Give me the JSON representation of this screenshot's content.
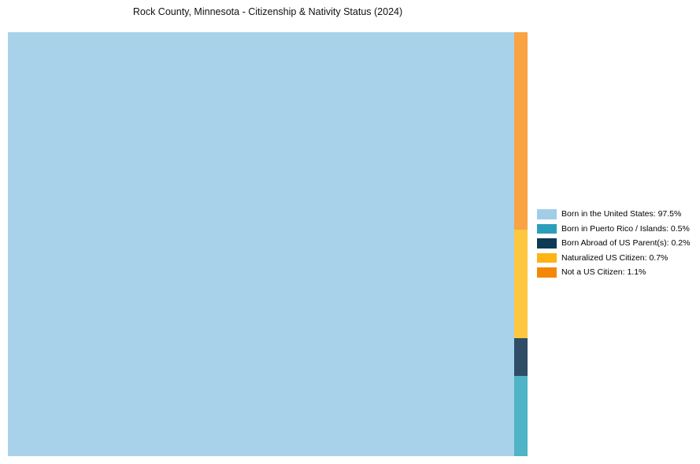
{
  "title": "Rock County, Minnesota - Citizenship & Nativity Status (2024)",
  "chart_data": {
    "type": "treemap",
    "title": "Rock County, Minnesota - Citizenship & Nativity Status (2024)",
    "categories": [
      "Born in the United States",
      "Born in Puerto Rico / Islands",
      "Born Abroad of US Parent(s)",
      "Naturalized US Citizen",
      "Not a US Citizen"
    ],
    "values": [
      97.5,
      0.5,
      0.2,
      0.7,
      1.1
    ],
    "unit": "%",
    "legend_position": "right",
    "segment_colors": [
      "#a7d2e9",
      "#4eb4c6",
      "#2f4d66",
      "#fdc83f",
      "#f9a342"
    ],
    "legend_swatch_colors": [
      "#a1cde7",
      "#2a9fb9",
      "#0e3a55",
      "#fdb414",
      "#f38806"
    ],
    "layout": "large rectangle on left for majority category, thin vertical strip on right stacked top-to-bottom: Not a US Citizen, Naturalized US Citizen, Born Abroad of US Parent(s), Born in Puerto Rico / Islands"
  },
  "legend": {
    "items": [
      {
        "label": "Born in the United States: 97.5%",
        "color": "#a1cde7"
      },
      {
        "label": "Born in Puerto Rico / Islands: 0.5%",
        "color": "#2a9fb9"
      },
      {
        "label": "Born Abroad of US Parent(s): 0.2%",
        "color": "#0e3a55"
      },
      {
        "label": "Naturalized US Citizen: 0.7%",
        "color": "#fdb414"
      },
      {
        "label": "Not a US Citizen: 1.1%",
        "color": "#f38806"
      }
    ]
  },
  "colors": {
    "background": "#ffffff",
    "title_text": "#111111",
    "legend_text": "#000000"
  }
}
